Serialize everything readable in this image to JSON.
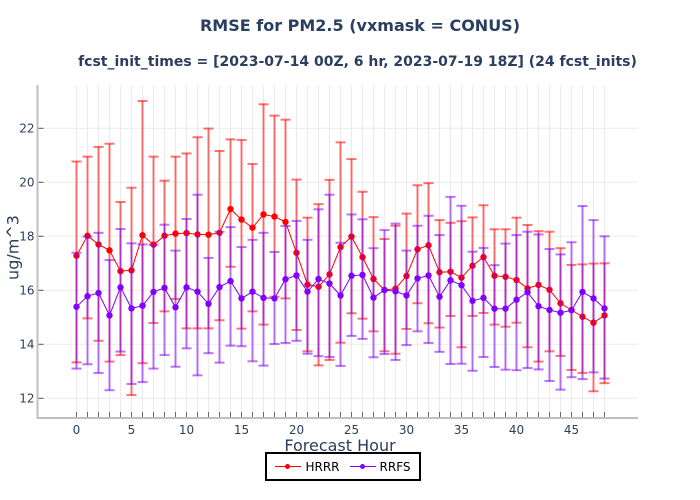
{
  "chart_data": {
    "type": "line",
    "title": "RMSE for PM2.5 (vxmask = CONUS)",
    "subtitle": "fcst_init_times = [2023-07-14 00Z, 6 hr, 2023-07-19 18Z] (24 fcst_inits)",
    "xlabel": "Forecast Hour",
    "ylabel": "ug/m^3",
    "xlim": [
      -3.5,
      51.5
    ],
    "ylim": [
      11.3,
      23.6
    ],
    "xticks": [
      0,
      5,
      10,
      15,
      20,
      25,
      30,
      35,
      40,
      45
    ],
    "xtick_labels": [
      "0",
      "5",
      "10",
      "15",
      "20",
      "25",
      "30",
      "35",
      "40",
      "45"
    ],
    "yticks": [
      12,
      14,
      16,
      18,
      20,
      22
    ],
    "ytick_labels": [
      "12",
      "14",
      "16",
      "18",
      "20",
      "22"
    ],
    "grid": true,
    "legend_position": "bottom-center",
    "x": [
      0,
      1,
      2,
      3,
      4,
      5,
      6,
      7,
      8,
      9,
      10,
      11,
      12,
      13,
      14,
      15,
      16,
      17,
      18,
      19,
      20,
      21,
      22,
      23,
      24,
      25,
      26,
      27,
      28,
      29,
      30,
      31,
      32,
      33,
      34,
      35,
      36,
      37,
      38,
      39,
      40,
      41,
      42,
      43,
      44,
      45,
      46,
      47,
      48
    ],
    "series": [
      {
        "name": "HRRR",
        "color": "#ff0000",
        "values": [
          17.28,
          18.02,
          17.7,
          17.48,
          16.71,
          16.74,
          18.04,
          17.69,
          18.02,
          18.1,
          18.12,
          18.07,
          18.06,
          18.13,
          19.01,
          18.62,
          18.32,
          18.81,
          18.73,
          18.53,
          17.39,
          16.21,
          16.13,
          16.59,
          17.6,
          17.99,
          17.23,
          16.42,
          16.01,
          16.06,
          16.53,
          17.52,
          17.67,
          16.67,
          16.69,
          16.47,
          16.91,
          17.23,
          16.54,
          16.5,
          16.38,
          16.07,
          16.2,
          16.02,
          15.52,
          15.27,
          15.02,
          14.8,
          15.07
        ],
        "upper": [
          20.77,
          20.95,
          21.31,
          21.43,
          19.27,
          19.8,
          23.01,
          20.95,
          20.06,
          20.95,
          21.07,
          21.67,
          21.99,
          21.16,
          21.59,
          21.57,
          20.68,
          22.89,
          22.47,
          22.32,
          20.1,
          18.69,
          19.19,
          20.09,
          21.48,
          20.86,
          19.65,
          18.71,
          17.9,
          18.39,
          18.84,
          19.89,
          19.97,
          18.6,
          18.5,
          18.56,
          18.7,
          19.15,
          18.26,
          18.26,
          18.69,
          18.42,
          18.19,
          18.17,
          17.56,
          16.94,
          16.96,
          16.99,
          17.0
        ],
        "lower": [
          13.33,
          14.96,
          14.13,
          13.36,
          13.6,
          12.12,
          13.3,
          14.79,
          15.22,
          15.68,
          14.59,
          14.59,
          14.59,
          14.89,
          16.87,
          14.58,
          15.22,
          14.73,
          15.76,
          15.7,
          14.53,
          13.74,
          13.22,
          13.42,
          14.06,
          15.15,
          14.95,
          14.48,
          13.74,
          13.65,
          14.57,
          15.52,
          14.78,
          14.62,
          15.05,
          13.89,
          15.05,
          15.16,
          14.73,
          14.65,
          14.8,
          13.89,
          13.36,
          13.74,
          13.57,
          13.05,
          12.94,
          12.26,
          12.56
        ]
      },
      {
        "name": "RRFS",
        "color": "#8000ff",
        "values": [
          15.39,
          15.78,
          15.9,
          15.07,
          16.11,
          15.33,
          15.43,
          15.94,
          16.09,
          15.37,
          16.11,
          15.95,
          15.5,
          16.12,
          16.34,
          15.7,
          15.95,
          15.72,
          15.7,
          16.41,
          16.55,
          15.95,
          16.42,
          16.25,
          15.81,
          16.54,
          16.57,
          15.73,
          16.01,
          15.96,
          15.81,
          16.44,
          16.55,
          15.76,
          16.37,
          16.19,
          15.61,
          15.72,
          15.32,
          15.32,
          15.65,
          15.93,
          15.41,
          15.27,
          15.17,
          15.26,
          15.94,
          15.7,
          15.33
        ],
        "upper": [
          17.39,
          17.99,
          18.13,
          17.12,
          18.27,
          17.74,
          17.7,
          17.69,
          18.43,
          17.47,
          18.64,
          19.54,
          17.2,
          18.17,
          18.34,
          17.6,
          17.87,
          18.13,
          17.42,
          18.38,
          18.57,
          17.87,
          19.0,
          19.54,
          17.76,
          18.81,
          18.63,
          17.56,
          18.23,
          18.47,
          17.47,
          18.39,
          18.76,
          18.05,
          19.46,
          19.13,
          17.43,
          17.57,
          16.93,
          17.73,
          18.05,
          18.17,
          18.07,
          17.53,
          17.33,
          17.78,
          19.12,
          18.6,
          18.0
        ],
        "lower": [
          13.1,
          13.26,
          12.94,
          12.3,
          13.73,
          12.53,
          12.6,
          13.1,
          13.6,
          13.17,
          13.85,
          12.85,
          13.67,
          13.32,
          13.95,
          13.93,
          13.37,
          13.21,
          14.01,
          14.05,
          14.13,
          13.65,
          13.56,
          13.53,
          13.2,
          14.31,
          14.2,
          13.52,
          13.64,
          13.42,
          13.97,
          14.48,
          14.05,
          13.72,
          13.27,
          13.28,
          13.02,
          13.53,
          13.16,
          13.06,
          13.04,
          13.12,
          13.07,
          12.64,
          12.32,
          12.78,
          12.71,
          12.96,
          12.73
        ]
      }
    ]
  },
  "colors": {
    "text": "#2a3f5f",
    "grid": "#ebebeb",
    "axis": "#bfbfbf"
  }
}
